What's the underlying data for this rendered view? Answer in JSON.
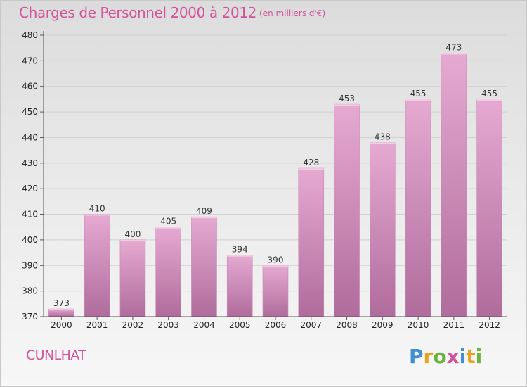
{
  "header": {
    "title": "Charges de Personnel 2000 à 2012",
    "subtitle": "(en milliers d'€)"
  },
  "footer": {
    "place": "CUNLHAT",
    "brand": "Proxiti"
  },
  "colors": {
    "title": "#d2529b",
    "bar_top": "#e6aad2",
    "bar_bottom": "#b06c9c",
    "axis": "#555555",
    "grid": "#d0d0d0"
  },
  "chart_data": {
    "type": "bar",
    "title": "Charges de Personnel 2000 à 2012",
    "subtitle": "(en milliers d'€)",
    "categories": [
      "2000",
      "2001",
      "2002",
      "2003",
      "2004",
      "2005",
      "2006",
      "2007",
      "2008",
      "2009",
      "2010",
      "2011",
      "2012"
    ],
    "values": [
      373,
      410,
      400,
      405,
      409,
      394,
      390,
      428,
      453,
      438,
      455,
      473,
      455
    ],
    "ylim": [
      370,
      480
    ],
    "yticks": [
      370,
      380,
      390,
      400,
      410,
      420,
      430,
      440,
      450,
      460,
      470,
      480
    ],
    "grid": true,
    "legend": "none"
  }
}
